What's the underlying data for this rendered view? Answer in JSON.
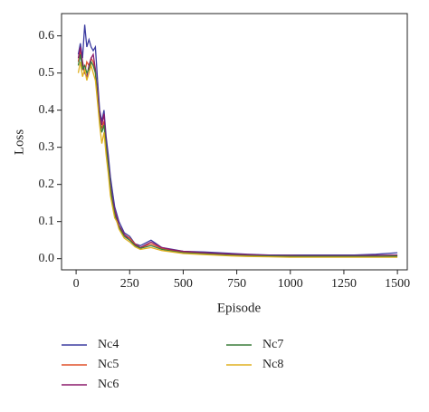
{
  "chart_data": {
    "type": "line",
    "xlabel": "Episode",
    "ylabel": "Loss",
    "x": [
      10,
      20,
      30,
      40,
      50,
      60,
      70,
      80,
      90,
      100,
      110,
      120,
      130,
      140,
      150,
      160,
      170,
      180,
      190,
      200,
      225,
      250,
      275,
      300,
      350,
      400,
      450,
      500,
      600,
      700,
      800,
      900,
      1000,
      1100,
      1200,
      1300,
      1400,
      1500
    ],
    "series": [
      {
        "name": "Nc4",
        "color": "#3c3ca0",
        "values": [
          0.55,
          0.58,
          0.54,
          0.63,
          0.57,
          0.59,
          0.57,
          0.56,
          0.57,
          0.48,
          0.4,
          0.37,
          0.4,
          0.33,
          0.28,
          0.22,
          0.18,
          0.14,
          0.12,
          0.1,
          0.07,
          0.06,
          0.04,
          0.035,
          0.05,
          0.03,
          0.025,
          0.02,
          0.018,
          0.015,
          0.012,
          0.01,
          0.01,
          0.01,
          0.01,
          0.01,
          0.012,
          0.016
        ]
      },
      {
        "name": "Nc5",
        "color": "#e0502a",
        "values": [
          0.53,
          0.56,
          0.52,
          0.5,
          0.53,
          0.52,
          0.54,
          0.53,
          0.5,
          0.45,
          0.38,
          0.35,
          0.37,
          0.3,
          0.25,
          0.19,
          0.15,
          0.13,
          0.11,
          0.09,
          0.065,
          0.055,
          0.04,
          0.03,
          0.04,
          0.028,
          0.022,
          0.018,
          0.015,
          0.012,
          0.01,
          0.008,
          0.008,
          0.007,
          0.007,
          0.007,
          0.008,
          0.008
        ]
      },
      {
        "name": "Nc6",
        "color": "#8b1a6b",
        "values": [
          0.54,
          0.57,
          0.53,
          0.5,
          0.49,
          0.52,
          0.54,
          0.55,
          0.51,
          0.44,
          0.39,
          0.36,
          0.39,
          0.31,
          0.26,
          0.2,
          0.16,
          0.13,
          0.11,
          0.09,
          0.065,
          0.05,
          0.038,
          0.03,
          0.045,
          0.03,
          0.024,
          0.02,
          0.016,
          0.013,
          0.011,
          0.009,
          0.008,
          0.008,
          0.008,
          0.008,
          0.009,
          0.01
        ]
      },
      {
        "name": "Nc7",
        "color": "#3a7d3a",
        "values": [
          0.52,
          0.55,
          0.51,
          0.52,
          0.5,
          0.51,
          0.53,
          0.52,
          0.5,
          0.43,
          0.37,
          0.34,
          0.36,
          0.3,
          0.25,
          0.19,
          0.15,
          0.12,
          0.1,
          0.085,
          0.06,
          0.05,
          0.035,
          0.028,
          0.035,
          0.025,
          0.02,
          0.016,
          0.013,
          0.01,
          0.008,
          0.007,
          0.006,
          0.006,
          0.006,
          0.006,
          0.006,
          0.007
        ]
      },
      {
        "name": "Nc8",
        "color": "#e0b020",
        "values": [
          0.5,
          0.53,
          0.49,
          0.51,
          0.48,
          0.5,
          0.52,
          0.5,
          0.48,
          0.42,
          0.36,
          0.31,
          0.34,
          0.28,
          0.23,
          0.17,
          0.14,
          0.11,
          0.1,
          0.08,
          0.055,
          0.045,
          0.032,
          0.025,
          0.03,
          0.022,
          0.018,
          0.014,
          0.011,
          0.008,
          0.006,
          0.005,
          0.004,
          0.004,
          0.004,
          0.004,
          0.004,
          0.004
        ]
      }
    ],
    "xlim": [
      -68,
      1546
    ],
    "ylim": [
      -0.03,
      0.66
    ],
    "xticks": [
      0,
      250,
      500,
      750,
      1000,
      1250,
      1500
    ],
    "yticks": [
      {
        "value": 0,
        "label": "0.0"
      },
      {
        "value": 0.1,
        "label": "0.1"
      },
      {
        "value": 0.2,
        "label": "0.2"
      },
      {
        "value": 0.3,
        "label": "0.3"
      },
      {
        "value": 0.4,
        "label": "0.4"
      },
      {
        "value": 0.5,
        "label": "0.5"
      },
      {
        "value": 0.6,
        "label": "0.6"
      }
    ]
  }
}
